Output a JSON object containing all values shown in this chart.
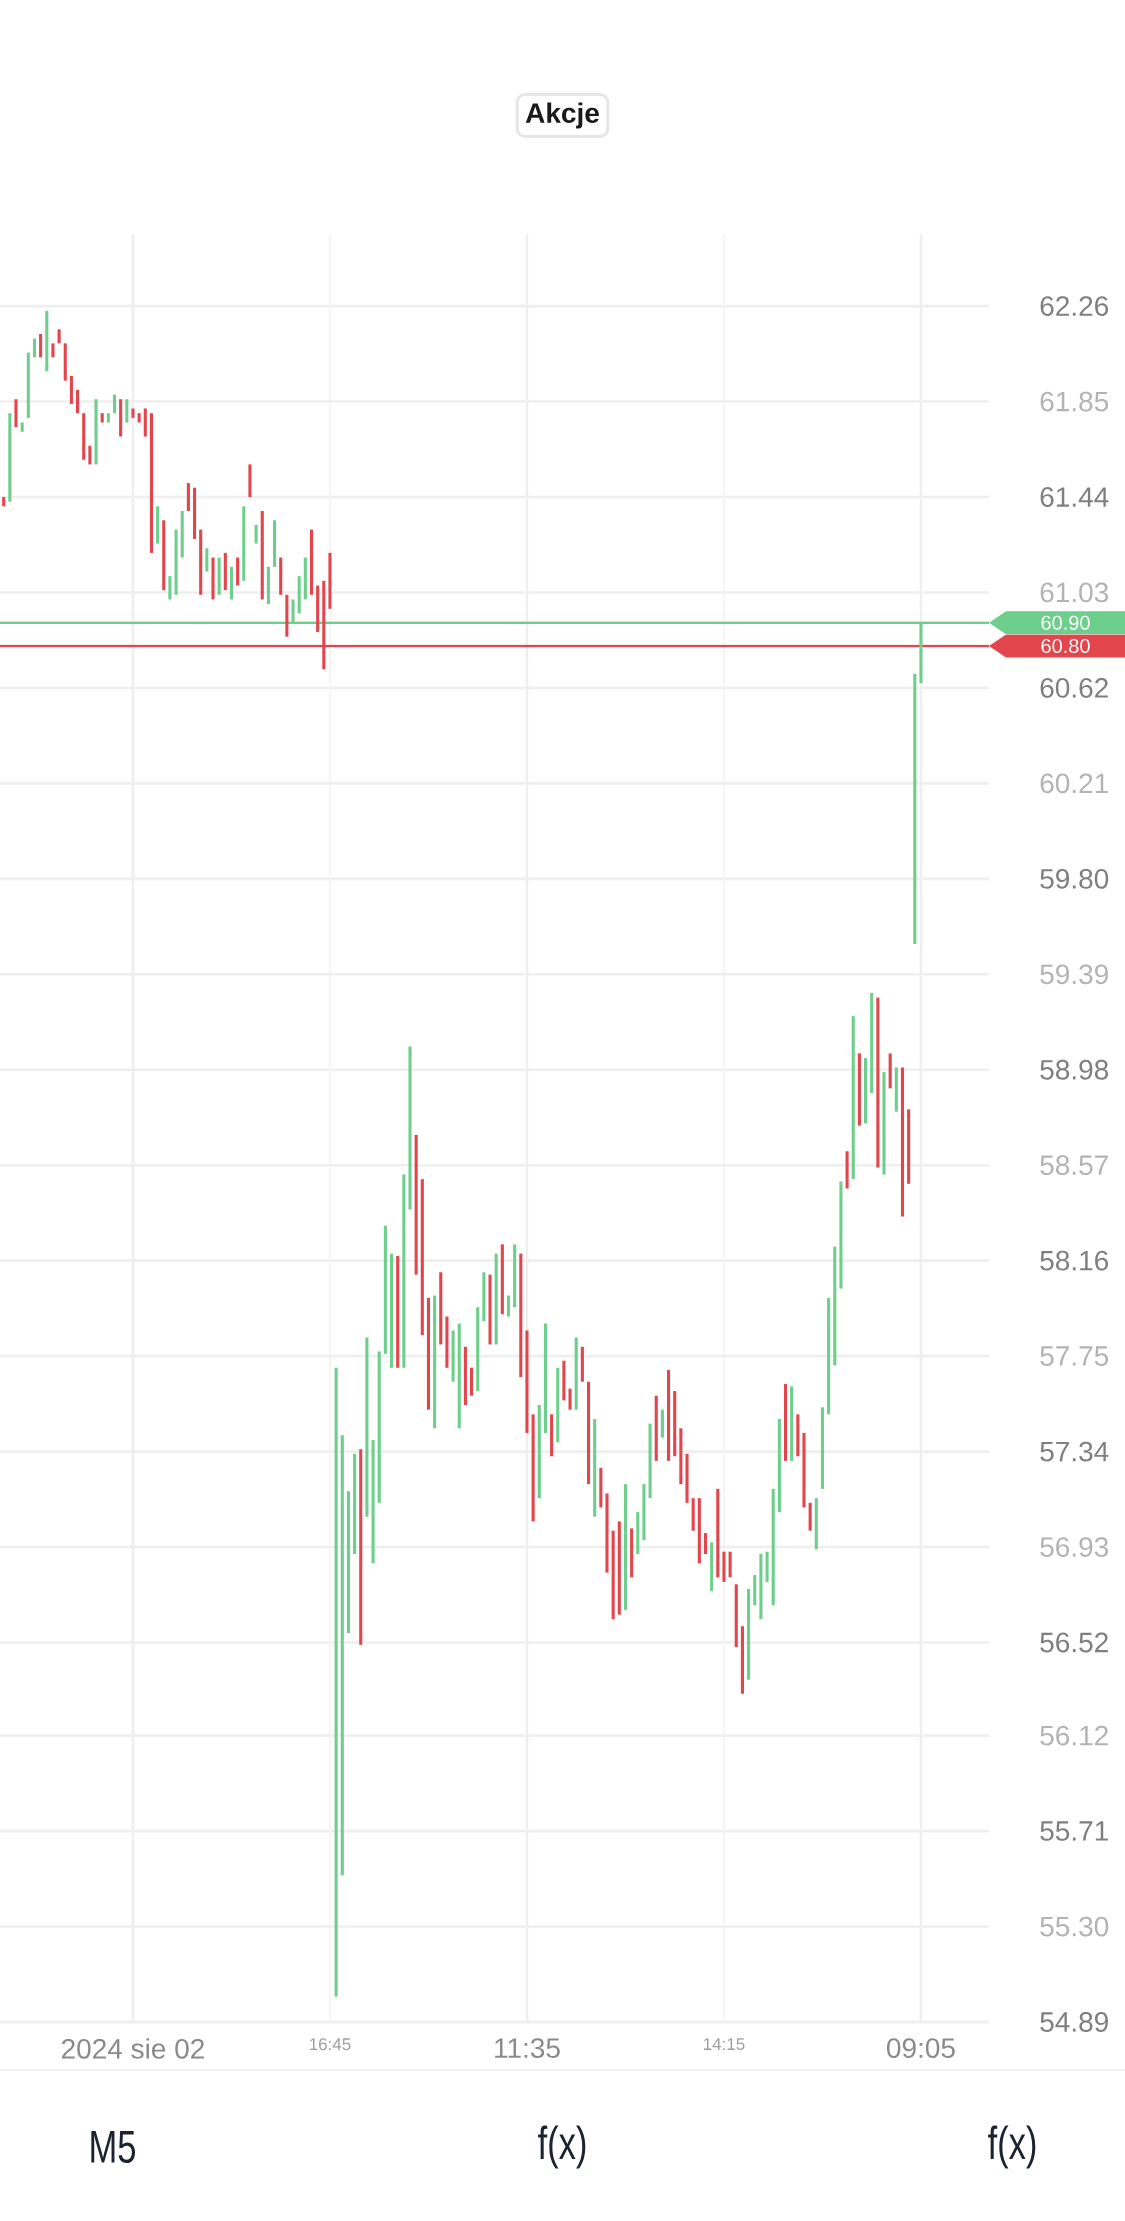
{
  "chart_data": {
    "type": "candlestick",
    "title": "Akcje",
    "categories": [
      null,
      null,
      null,
      null,
      null,
      null,
      null,
      null,
      null,
      null,
      null,
      null,
      null,
      null,
      null,
      null,
      null,
      null,
      null,
      null,
      null,
      "2024 sie 02",
      null,
      null,
      null,
      null,
      null,
      null,
      null,
      null,
      null,
      null,
      null,
      null,
      null,
      null,
      null,
      null,
      null,
      null,
      null,
      null,
      null,
      null,
      null,
      null,
      null,
      null,
      null,
      null,
      null,
      null,
      null,
      "16:45",
      null,
      null,
      null,
      null,
      null,
      null,
      null,
      null,
      null,
      null,
      null,
      null,
      null,
      null,
      null,
      null,
      null,
      null,
      null,
      null,
      null,
      null,
      null,
      null,
      null,
      null,
      null,
      null,
      null,
      null,
      null,
      "11:35",
      null,
      null,
      null,
      null,
      null,
      null,
      null,
      null,
      null,
      null,
      null,
      null,
      null,
      null,
      null,
      null,
      null,
      null,
      null,
      null,
      null,
      null,
      null,
      null,
      null,
      null,
      null,
      null,
      null,
      null,
      null,
      "14:15",
      null,
      null,
      null,
      null,
      null,
      null,
      null,
      null,
      null,
      null,
      null,
      null,
      null,
      null,
      null,
      null,
      null,
      null,
      null,
      null,
      null,
      null,
      null,
      null,
      null,
      null,
      null,
      null,
      null,
      null,
      null,
      "09:05"
    ],
    "ohlc": [
      [
        61.44,
        61.44,
        61.4,
        61.4
      ],
      [
        61.42,
        61.8,
        61.42,
        61.8
      ],
      [
        61.86,
        61.86,
        61.74,
        61.74
      ],
      [
        61.72,
        61.76,
        61.72,
        61.76
      ],
      [
        61.78,
        62.06,
        61.78,
        62.06
      ],
      [
        62.04,
        62.12,
        62.04,
        62.12
      ],
      [
        62.14,
        62.14,
        62.04,
        62.04
      ],
      [
        61.98,
        62.24,
        61.98,
        62.24
      ],
      [
        62.1,
        62.1,
        62.04,
        62.04
      ],
      [
        62.16,
        62.16,
        62.1,
        62.1
      ],
      [
        62.1,
        62.1,
        61.94,
        61.94
      ],
      [
        61.96,
        61.96,
        61.84,
        61.84
      ],
      [
        61.9,
        61.9,
        61.8,
        61.8
      ],
      [
        61.8,
        61.8,
        61.6,
        61.6
      ],
      [
        61.66,
        61.66,
        61.58,
        61.58
      ],
      [
        61.58,
        61.86,
        61.58,
        61.86
      ],
      [
        61.8,
        61.8,
        61.76,
        61.76
      ],
      [
        61.76,
        61.8,
        61.76,
        61.8
      ],
      [
        61.8,
        61.88,
        61.8,
        61.88
      ],
      [
        61.86,
        61.86,
        61.7,
        61.7
      ],
      [
        61.76,
        61.86,
        61.76,
        61.86
      ],
      [
        61.82,
        61.82,
        61.78,
        61.78
      ],
      [
        61.8,
        61.8,
        61.76,
        61.76
      ],
      [
        61.82,
        61.82,
        61.7,
        61.7
      ],
      [
        61.8,
        61.8,
        61.2,
        61.2
      ],
      [
        61.24,
        61.4,
        61.24,
        61.4
      ],
      [
        61.34,
        61.34,
        61.04,
        61.04
      ],
      [
        61.0,
        61.1,
        61.0,
        61.1
      ],
      [
        61.02,
        61.3,
        61.02,
        61.3
      ],
      [
        61.18,
        61.38,
        61.18,
        61.38
      ],
      [
        61.5,
        61.5,
        61.38,
        61.38
      ],
      [
        61.48,
        61.48,
        61.26,
        61.26
      ],
      [
        61.3,
        61.3,
        61.02,
        61.02
      ],
      [
        61.12,
        61.22,
        61.12,
        61.22
      ],
      [
        61.18,
        61.18,
        61.0,
        61.0
      ],
      [
        61.02,
        61.18,
        61.02,
        61.18
      ],
      [
        61.2,
        61.2,
        61.04,
        61.04
      ],
      [
        61.0,
        61.14,
        61.0,
        61.14
      ],
      [
        61.18,
        61.18,
        61.06,
        61.06
      ],
      [
        61.08,
        61.4,
        61.08,
        61.4
      ],
      [
        61.58,
        61.58,
        61.44,
        61.44
      ],
      [
        61.24,
        61.32,
        61.24,
        61.32
      ],
      [
        61.38,
        61.38,
        61.0,
        61.0
      ],
      [
        60.98,
        61.14,
        60.98,
        61.14
      ],
      [
        61.14,
        61.34,
        61.14,
        61.34
      ],
      [
        61.18,
        61.18,
        61.02,
        61.02
      ],
      [
        61.02,
        61.02,
        60.84,
        60.84
      ],
      [
        60.9,
        61.0,
        60.9,
        61.0
      ],
      [
        60.94,
        61.1,
        60.94,
        61.1
      ],
      [
        61.0,
        61.18,
        61.0,
        61.18
      ],
      [
        61.3,
        61.3,
        61.02,
        61.02
      ],
      [
        61.06,
        61.06,
        60.86,
        60.86
      ],
      [
        61.08,
        61.08,
        60.7,
        60.7
      ],
      [
        61.2,
        61.2,
        60.96,
        60.96
      ],
      [
        55.0,
        57.7,
        55.0,
        57.7
      ],
      [
        55.52,
        57.41,
        55.52,
        57.41
      ],
      [
        56.56,
        57.17,
        56.56,
        57.17
      ],
      [
        56.9,
        57.33,
        56.9,
        57.33
      ],
      [
        57.35,
        57.35,
        56.51,
        56.51
      ],
      [
        57.06,
        57.83,
        57.06,
        57.83
      ],
      [
        56.86,
        57.39,
        56.86,
        57.39
      ],
      [
        57.12,
        57.77,
        57.12,
        57.77
      ],
      [
        57.76,
        58.31,
        57.76,
        58.31
      ],
      [
        57.7,
        58.19,
        57.7,
        58.19
      ],
      [
        58.18,
        58.18,
        57.7,
        57.7
      ],
      [
        57.7,
        58.53,
        57.7,
        58.53
      ],
      [
        58.38,
        59.08,
        58.38,
        59.08
      ],
      [
        58.7,
        58.7,
        58.1,
        58.1
      ],
      [
        58.51,
        58.51,
        57.84,
        57.84
      ],
      [
        58.0,
        58.0,
        57.52,
        57.52
      ],
      [
        57.44,
        58.01,
        57.44,
        58.01
      ],
      [
        58.11,
        58.11,
        57.8,
        57.8
      ],
      [
        57.92,
        57.92,
        57.7,
        57.7
      ],
      [
        57.64,
        57.86,
        57.64,
        57.86
      ],
      [
        57.44,
        57.89,
        57.44,
        57.89
      ],
      [
        57.79,
        57.79,
        57.54,
        57.54
      ],
      [
        57.7,
        57.7,
        57.58,
        57.58
      ],
      [
        57.6,
        57.96,
        57.6,
        57.96
      ],
      [
        57.9,
        58.11,
        57.9,
        58.11
      ],
      [
        58.1,
        58.1,
        57.8,
        57.8
      ],
      [
        57.8,
        58.19,
        57.8,
        58.19
      ],
      [
        58.23,
        58.23,
        57.93,
        57.93
      ],
      [
        57.92,
        58.01,
        57.92,
        58.01
      ],
      [
        57.96,
        58.23,
        57.96,
        58.23
      ],
      [
        58.19,
        58.19,
        57.66,
        57.66
      ],
      [
        57.86,
        57.86,
        57.42,
        57.42
      ],
      [
        57.5,
        57.5,
        57.04,
        57.04
      ],
      [
        57.14,
        57.54,
        57.14,
        57.54
      ],
      [
        57.42,
        57.89,
        57.42,
        57.89
      ],
      [
        57.5,
        57.5,
        57.32,
        57.32
      ],
      [
        57.38,
        57.7,
        57.38,
        57.7
      ],
      [
        57.73,
        57.73,
        57.56,
        57.56
      ],
      [
        57.61,
        57.61,
        57.52,
        57.52
      ],
      [
        57.52,
        57.83,
        57.52,
        57.83
      ],
      [
        57.79,
        57.79,
        57.64,
        57.64
      ],
      [
        57.64,
        57.64,
        57.2,
        57.2
      ],
      [
        57.06,
        57.48,
        57.06,
        57.48
      ],
      [
        57.27,
        57.27,
        57.1,
        57.1
      ],
      [
        57.16,
        57.16,
        56.82,
        56.82
      ],
      [
        57.0,
        57.0,
        56.62,
        56.62
      ],
      [
        57.04,
        57.04,
        56.64,
        56.64
      ],
      [
        56.66,
        57.2,
        56.66,
        57.2
      ],
      [
        57.01,
        57.01,
        56.8,
        56.8
      ],
      [
        56.9,
        57.08,
        56.9,
        57.08
      ],
      [
        56.96,
        57.2,
        56.96,
        57.2
      ],
      [
        57.14,
        57.46,
        57.14,
        57.46
      ],
      [
        57.58,
        57.58,
        57.3,
        57.3
      ],
      [
        57.4,
        57.52,
        57.4,
        57.52
      ],
      [
        57.69,
        57.69,
        57.3,
        57.3
      ],
      [
        57.6,
        57.6,
        57.32,
        57.32
      ],
      [
        57.44,
        57.44,
        57.2,
        57.2
      ],
      [
        57.33,
        57.33,
        57.12,
        57.12
      ],
      [
        57.14,
        57.14,
        57.0,
        57.0
      ],
      [
        57.14,
        57.14,
        56.86,
        56.86
      ],
      [
        56.99,
        56.99,
        56.9,
        56.9
      ],
      [
        56.74,
        56.95,
        56.74,
        56.95
      ],
      [
        57.18,
        57.18,
        56.8,
        56.8
      ],
      [
        56.91,
        56.91,
        56.78,
        56.78
      ],
      [
        56.91,
        56.91,
        56.8,
        56.8
      ],
      [
        56.77,
        56.77,
        56.5,
        56.5
      ],
      [
        56.59,
        56.59,
        56.3,
        56.3
      ],
      [
        56.36,
        56.75,
        56.36,
        56.75
      ],
      [
        56.68,
        56.81,
        56.68,
        56.81
      ],
      [
        56.62,
        56.9,
        56.62,
        56.9
      ],
      [
        56.78,
        56.91,
        56.78,
        56.91
      ],
      [
        56.68,
        57.18,
        56.68,
        57.18
      ],
      [
        57.08,
        57.48,
        57.08,
        57.48
      ],
      [
        57.63,
        57.63,
        57.3,
        57.3
      ],
      [
        57.3,
        57.62,
        57.3,
        57.62
      ],
      [
        57.5,
        57.5,
        57.32,
        57.32
      ],
      [
        57.42,
        57.42,
        57.1,
        57.1
      ],
      [
        57.12,
        57.12,
        57.0,
        57.0
      ],
      [
        56.92,
        57.14,
        56.92,
        57.14
      ],
      [
        57.18,
        57.53,
        57.18,
        57.53
      ],
      [
        57.5,
        58.0,
        57.5,
        58.0
      ],
      [
        57.71,
        58.22,
        57.71,
        58.22
      ],
      [
        58.04,
        58.5,
        58.04,
        58.5
      ],
      [
        58.63,
        58.63,
        58.47,
        58.47
      ],
      [
        58.51,
        59.21,
        58.51,
        59.21
      ],
      [
        59.05,
        59.05,
        58.74,
        58.74
      ],
      [
        58.75,
        59.03,
        58.75,
        59.03
      ],
      [
        58.88,
        59.31,
        58.88,
        59.31
      ],
      [
        59.29,
        59.29,
        58.56,
        58.56
      ],
      [
        58.53,
        58.97,
        58.53,
        58.97
      ],
      [
        59.05,
        59.05,
        58.9,
        58.9
      ],
      [
        58.8,
        58.99,
        58.8,
        58.99
      ],
      [
        58.99,
        58.99,
        58.35,
        58.35
      ],
      [
        58.81,
        58.81,
        58.49,
        58.49
      ],
      [
        59.52,
        60.68,
        59.52,
        60.68
      ],
      [
        60.64,
        60.9,
        60.64,
        60.9
      ]
    ],
    "colors": [
      "#e2464c",
      "#6dcf8b",
      "#e2464c",
      "#6dcf8b",
      "#6dcf8b",
      "#6dcf8b",
      "#e2464c",
      "#6dcf8b",
      "#e2464c",
      "#e2464c",
      "#e2464c",
      "#e2464c",
      "#e2464c",
      "#e2464c",
      "#e2464c",
      "#6dcf8b",
      "#e2464c",
      "#6dcf8b",
      "#6dcf8b",
      "#e2464c",
      "#6dcf8b",
      "#e2464c",
      "#e2464c",
      "#e2464c",
      "#e2464c",
      "#6dcf8b",
      "#e2464c",
      "#6dcf8b",
      "#6dcf8b",
      "#6dcf8b",
      "#e2464c",
      "#e2464c",
      "#e2464c",
      "#6dcf8b",
      "#e2464c",
      "#6dcf8b",
      "#e2464c",
      "#6dcf8b",
      "#e2464c",
      "#6dcf8b",
      "#e2464c",
      "#6dcf8b",
      "#e2464c",
      "#6dcf8b",
      "#6dcf8b",
      "#e2464c",
      "#e2464c",
      "#6dcf8b",
      "#6dcf8b",
      "#6dcf8b",
      "#e2464c",
      "#e2464c",
      "#e2464c",
      "#e2464c",
      "#6dcf8b",
      "#6dcf8b",
      "#6dcf8b",
      "#6dcf8b",
      "#e2464c",
      "#6dcf8b",
      "#6dcf8b",
      "#6dcf8b",
      "#6dcf8b",
      "#6dcf8b",
      "#e2464c",
      "#6dcf8b",
      "#6dcf8b",
      "#e2464c",
      "#e2464c",
      "#e2464c",
      "#6dcf8b",
      "#e2464c",
      "#e2464c",
      "#6dcf8b",
      "#6dcf8b",
      "#e2464c",
      "#e2464c",
      "#6dcf8b",
      "#6dcf8b",
      "#e2464c",
      "#6dcf8b",
      "#e2464c",
      "#6dcf8b",
      "#6dcf8b",
      "#e2464c",
      "#e2464c",
      "#e2464c",
      "#6dcf8b",
      "#6dcf8b",
      "#e2464c",
      "#6dcf8b",
      "#e2464c",
      "#e2464c",
      "#6dcf8b",
      "#e2464c",
      "#e2464c",
      "#6dcf8b",
      "#e2464c",
      "#e2464c",
      "#e2464c",
      "#e2464c",
      "#6dcf8b",
      "#e2464c",
      "#6dcf8b",
      "#6dcf8b",
      "#6dcf8b",
      "#e2464c",
      "#6dcf8b",
      "#e2464c",
      "#e2464c",
      "#e2464c",
      "#e2464c",
      "#e2464c",
      "#e2464c",
      "#e2464c",
      "#6dcf8b",
      "#e2464c",
      "#e2464c",
      "#e2464c",
      "#e2464c",
      "#e2464c",
      "#6dcf8b",
      "#6dcf8b",
      "#6dcf8b",
      "#6dcf8b",
      "#6dcf8b",
      "#6dcf8b",
      "#e2464c",
      "#6dcf8b",
      "#e2464c",
      "#e2464c",
      "#e2464c",
      "#6dcf8b",
      "#6dcf8b",
      "#6dcf8b",
      "#6dcf8b",
      "#6dcf8b",
      "#e2464c",
      "#6dcf8b",
      "#e2464c",
      "#6dcf8b",
      "#6dcf8b",
      "#e2464c",
      "#6dcf8b",
      "#e2464c",
      "#6dcf8b",
      "#e2464c",
      "#e2464c",
      "#6dcf8b",
      "#6dcf8b"
    ],
    "ylim": [
      54.89,
      62.57
    ],
    "yticks": [
      54.89,
      {
        "value": 55.3,
        "label": "55.30"
      },
      55.71,
      56.12,
      56.52,
      56.93,
      57.34,
      57.75,
      58.16,
      58.57,
      58.98,
      59.39,
      {
        "value": 59.8,
        "label": "59.80"
      },
      60.21,
      60.62,
      61.03,
      61.44,
      61.85,
      62.26
    ],
    "grid": true,
    "ref_lines": [
      {
        "axis": "y",
        "value": 60.9,
        "label": "60.90",
        "color": "#6dcf8b"
      },
      {
        "axis": "y",
        "value": 60.8,
        "label": "60.80",
        "color": "#e2464c"
      }
    ],
    "annotations": [
      "M5",
      "f(x)",
      "f(x)"
    ]
  }
}
